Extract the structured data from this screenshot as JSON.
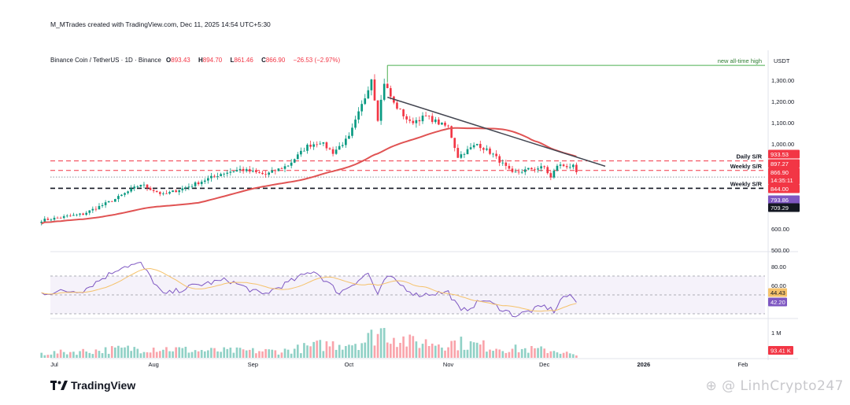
{
  "header": {
    "credit": "M_MTrades created with TradingView.com, Dec 11, 2025 14:54 UTC+5:30",
    "symbol": "Binance Coin / TetherUS · 1D · Binance",
    "ohlc": {
      "open_label": "O",
      "open": "893.43",
      "high_label": "H",
      "high": "894.70",
      "low_label": "L",
      "low": "861.46",
      "close_label": "C",
      "close": "866.90",
      "change": "−26.53 (−2.97%)"
    }
  },
  "brand": {
    "name": "TradingView",
    "icon": "tradingview-logo-icon"
  },
  "watermark": "LinhCrypto247",
  "colors": {
    "up": "#089981",
    "down": "#f23645",
    "ma": "#e05353",
    "rsi": "#7e57c2",
    "rsi_ma": "#f5c26b",
    "ath_line": "#4caf50",
    "trendline": "#434651"
  },
  "chart_data": [
    {
      "type": "candlestick",
      "currency_label": "USDT",
      "ylim": [
        500,
        1400
      ],
      "price_ticks": [
        1300,
        1200,
        1100,
        1000,
        600,
        500
      ],
      "price_tick_labels": [
        "1,300.00",
        "1,200.00",
        "1,100.00",
        "1,000.00",
        "600.00",
        "500.00"
      ],
      "time_labels": [
        "Jul",
        "Aug",
        "Sep",
        "Oct",
        "Nov",
        "Dec",
        "2026",
        "Feb"
      ],
      "time_label_dates": [
        "2025-07-01",
        "2025-08-01",
        "2025-09-01",
        "2025-10-01",
        "2025-11-01",
        "2025-12-01",
        "2026-01-01",
        "2026-02-01"
      ],
      "first_date": "2025-06-27",
      "last_date": "2025-12-11",
      "anchors": [
        {
          "date": "2025-06-27",
          "close": 640
        },
        {
          "date": "2025-07-10",
          "close": 670
        },
        {
          "date": "2025-07-20",
          "close": 740
        },
        {
          "date": "2025-07-28",
          "close": 810
        },
        {
          "date": "2025-08-04",
          "close": 760
        },
        {
          "date": "2025-08-12",
          "close": 800
        },
        {
          "date": "2025-08-22",
          "close": 860
        },
        {
          "date": "2025-08-28",
          "close": 880
        },
        {
          "date": "2025-09-05",
          "close": 855
        },
        {
          "date": "2025-09-12",
          "close": 900
        },
        {
          "date": "2025-09-18",
          "close": 990
        },
        {
          "date": "2025-09-22",
          "close": 1010
        },
        {
          "date": "2025-09-26",
          "close": 960
        },
        {
          "date": "2025-10-01",
          "close": 1030
        },
        {
          "date": "2025-10-06",
          "close": 1220
        },
        {
          "date": "2025-10-08",
          "close": 1310
        },
        {
          "date": "2025-10-10",
          "close": 1120
        },
        {
          "date": "2025-10-12",
          "close": 1290
        },
        {
          "date": "2025-10-15",
          "close": 1190
        },
        {
          "date": "2025-10-20",
          "close": 1100
        },
        {
          "date": "2025-10-25",
          "close": 1130
        },
        {
          "date": "2025-10-30",
          "close": 1090
        },
        {
          "date": "2025-11-01",
          "close": 1080
        },
        {
          "date": "2025-11-04",
          "close": 940
        },
        {
          "date": "2025-11-10",
          "close": 1000
        },
        {
          "date": "2025-11-15",
          "close": 950
        },
        {
          "date": "2025-11-21",
          "close": 860
        },
        {
          "date": "2025-11-26",
          "close": 880
        },
        {
          "date": "2025-12-01",
          "close": 890
        },
        {
          "date": "2025-12-03",
          "close": 840
        },
        {
          "date": "2025-12-05",
          "close": 900
        },
        {
          "date": "2025-12-10",
          "close": 893
        },
        {
          "date": "2025-12-11",
          "close": 866.9
        }
      ],
      "ma_series_name": "",
      "levels": [
        {
          "price": 1370,
          "label": "new all-time high",
          "style": "solid",
          "color": "#4caf50",
          "from_date": "2025-10-13"
        },
        {
          "price": 920,
          "label": "Daily S/R",
          "style": "dashed",
          "color": "#f23645"
        },
        {
          "price": 875,
          "label": "Weekly S/R",
          "style": "dashed",
          "color": "#f23645"
        },
        {
          "price": 844,
          "label": "",
          "style": "dotted",
          "color": "#9598a1"
        },
        {
          "price": 791,
          "label": "Weekly S/R",
          "style": "dashed",
          "color": "#131722"
        }
      ],
      "trendline": {
        "from": {
          "date": "2025-10-13",
          "price": 1220
        },
        "to": {
          "date": "2025-12-20",
          "price": 895
        }
      },
      "price_badges": [
        {
          "label": "933.53",
          "price": 933.53,
          "color": "#f23645"
        },
        {
          "label": "897.27",
          "price": 897.27,
          "color": "#f23645"
        },
        {
          "label": "866.90",
          "price": 866.9,
          "color": "#f23645"
        },
        {
          "label": "14:35:11",
          "price": 866.9,
          "color": "#f23645"
        },
        {
          "label": "844.00",
          "price": 844.0,
          "color": "#f23645"
        },
        {
          "label": "793.86",
          "price": 793.86,
          "color": "#7e57c2"
        },
        {
          "label": "709.29",
          "price": 709.29,
          "color": "#131722"
        }
      ]
    },
    {
      "type": "line",
      "name": "",
      "ylim": [
        20,
        90
      ],
      "ticks": [
        80,
        60
      ],
      "tick_labels": [
        "80.00",
        "60.00"
      ],
      "band": [
        30,
        70
      ],
      "rsi_anchors": [
        {
          "date": "2025-06-27",
          "value": 52
        },
        {
          "date": "2025-07-10",
          "value": 55
        },
        {
          "date": "2025-07-22",
          "value": 80
        },
        {
          "date": "2025-07-28",
          "value": 83
        },
        {
          "date": "2025-08-04",
          "value": 50
        },
        {
          "date": "2025-08-14",
          "value": 60
        },
        {
          "date": "2025-08-24",
          "value": 66
        },
        {
          "date": "2025-09-04",
          "value": 50
        },
        {
          "date": "2025-09-20",
          "value": 76
        },
        {
          "date": "2025-09-28",
          "value": 52
        },
        {
          "date": "2025-10-07",
          "value": 73
        },
        {
          "date": "2025-10-10",
          "value": 50
        },
        {
          "date": "2025-10-13",
          "value": 70
        },
        {
          "date": "2025-10-22",
          "value": 50
        },
        {
          "date": "2025-11-01",
          "value": 53
        },
        {
          "date": "2025-11-05",
          "value": 32
        },
        {
          "date": "2025-11-12",
          "value": 45
        },
        {
          "date": "2025-11-22",
          "value": 28
        },
        {
          "date": "2025-12-01",
          "value": 38
        },
        {
          "date": "2025-12-04",
          "value": 33
        },
        {
          "date": "2025-12-07",
          "value": 49
        },
        {
          "date": "2025-12-10",
          "value": 47
        },
        {
          "date": "2025-12-11",
          "value": 42.2
        }
      ],
      "badges": [
        {
          "label": "44.43",
          "value": 44.43,
          "color": "#f5c26b"
        },
        {
          "label": "42.20",
          "value": 42.2,
          "color": "#7e57c2"
        }
      ]
    },
    {
      "type": "bar",
      "name": "",
      "tick_label": "1 M",
      "tick_value": 1000000,
      "ymax": 1500000,
      "badge": {
        "label": "93.41 K",
        "value": 93410,
        "color": "#f23645"
      },
      "volume_anchors": [
        {
          "date": "2025-06-27",
          "value": 180000
        },
        {
          "date": "2025-07-20",
          "value": 350000
        },
        {
          "date": "2025-08-01",
          "value": 420000
        },
        {
          "date": "2025-08-15",
          "value": 300000
        },
        {
          "date": "2025-09-10",
          "value": 280000
        },
        {
          "date": "2025-09-22",
          "value": 520000
        },
        {
          "date": "2025-10-06",
          "value": 700000
        },
        {
          "date": "2025-10-11",
          "value": 1150000
        },
        {
          "date": "2025-10-20",
          "value": 650000
        },
        {
          "date": "2025-11-04",
          "value": 620000
        },
        {
          "date": "2025-11-20",
          "value": 380000
        },
        {
          "date": "2025-12-05",
          "value": 300000
        },
        {
          "date": "2025-12-11",
          "value": 93410
        }
      ]
    }
  ]
}
